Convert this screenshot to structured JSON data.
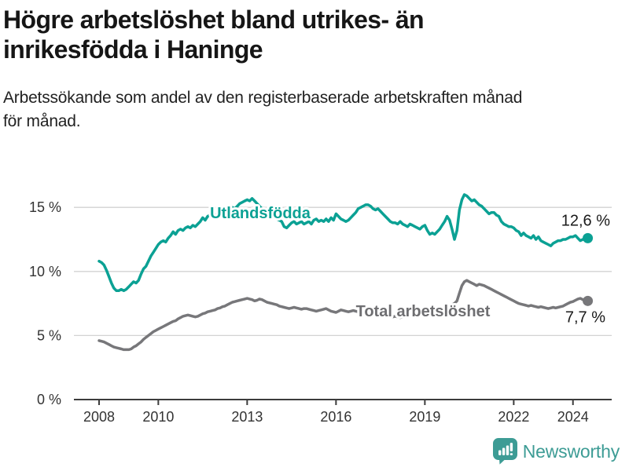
{
  "header": {
    "title_lines": [
      "Högre arbetslöshet bland utrikes- än",
      "inrikesfödda i Haninge"
    ],
    "subtitle_lines": [
      "Arbetssökande som andel av den registerbaserade arbetskraften månad",
      "för månad."
    ]
  },
  "footer": {
    "brand": "Newsworthy",
    "brand_color": "#3d9c95",
    "logo_icon": "newsworthy-speech-bubble-bar-chart-icon"
  },
  "chart_data": {
    "type": "line",
    "title": "Högre arbetslöshet bland utrikes- än inrikesfödda i Haninge",
    "subtitle": "Arbetssökande som andel av den registerbaserade arbetskraften månad för månad.",
    "x_unit": "month",
    "x_start": "2008-01",
    "x_end": "2024-07",
    "xlabel": "",
    "ylabel": "",
    "ylim": [
      0,
      16.5
    ],
    "grid": "horizontal",
    "grid_color": "#d2d2d2",
    "axis_color": "#3c3c3c",
    "tick_text_color": "#333333",
    "y_ticks": [
      {
        "value": 0,
        "label": "0 %"
      },
      {
        "value": 5,
        "label": "5 %"
      },
      {
        "value": 10,
        "label": "10 %"
      },
      {
        "value": 15,
        "label": "15 %"
      }
    ],
    "x_ticks": [
      {
        "year": 2008,
        "label": "2008"
      },
      {
        "year": 2010,
        "label": "2010"
      },
      {
        "year": 2013,
        "label": "2013"
      },
      {
        "year": 2016,
        "label": "2016"
      },
      {
        "year": 2019,
        "label": "2019"
      },
      {
        "year": 2022,
        "label": "2022"
      },
      {
        "year": 2024,
        "label": "2024"
      }
    ],
    "series": [
      {
        "name": "Utlandsfödda",
        "color": "#0ba194",
        "end_label": "12,6 %",
        "end_value": 12.6,
        "values": [
          10.8,
          10.7,
          10.5,
          10.1,
          9.6,
          9.1,
          8.7,
          8.5,
          8.5,
          8.6,
          8.5,
          8.6,
          8.8,
          9.0,
          9.2,
          9.1,
          9.3,
          9.8,
          10.2,
          10.4,
          10.8,
          11.2,
          11.5,
          11.8,
          12.1,
          12.3,
          12.4,
          12.3,
          12.6,
          12.8,
          13.1,
          12.9,
          13.2,
          13.3,
          13.2,
          13.4,
          13.5,
          13.4,
          13.6,
          13.5,
          13.7,
          13.9,
          14.2,
          14.0,
          14.3,
          14.4,
          14.3,
          14.4,
          14.5,
          14.4,
          14.6,
          14.5,
          14.6,
          14.8,
          15.0,
          14.9,
          15.1,
          15.3,
          15.4,
          15.5,
          15.6,
          15.5,
          15.7,
          15.5,
          15.3,
          15.1,
          14.9,
          14.7,
          14.5,
          14.4,
          14.3,
          14.2,
          14.1,
          14.0,
          13.9,
          13.5,
          13.4,
          13.6,
          13.8,
          13.9,
          13.7,
          13.8,
          13.9,
          13.7,
          13.8,
          13.9,
          13.7,
          14.0,
          14.1,
          13.9,
          14.0,
          13.9,
          14.1,
          13.9,
          14.2,
          14.0,
          14.5,
          14.3,
          14.1,
          14.0,
          13.9,
          14.0,
          14.2,
          14.4,
          14.6,
          14.9,
          15.0,
          15.1,
          15.2,
          15.2,
          15.1,
          14.9,
          14.8,
          14.9,
          14.7,
          14.5,
          14.3,
          14.1,
          13.9,
          13.8,
          13.8,
          13.7,
          13.9,
          13.7,
          13.6,
          13.5,
          13.7,
          13.6,
          13.5,
          13.4,
          13.3,
          13.5,
          13.6,
          13.2,
          12.9,
          13.0,
          12.9,
          13.1,
          13.3,
          13.6,
          13.9,
          14.3,
          14.0,
          13.3,
          12.5,
          13.2,
          14.8,
          15.6,
          16.0,
          15.9,
          15.7,
          15.5,
          15.6,
          15.4,
          15.2,
          15.1,
          14.9,
          14.7,
          14.5,
          14.6,
          14.6,
          14.4,
          14.3,
          13.9,
          13.7,
          13.6,
          13.5,
          13.5,
          13.4,
          13.2,
          13.1,
          12.8,
          13.0,
          12.8,
          12.7,
          12.6,
          12.8,
          12.5,
          12.7,
          12.4,
          12.3,
          12.2,
          12.1,
          12.0,
          12.2,
          12.3,
          12.4,
          12.4,
          12.5,
          12.5,
          12.6,
          12.7,
          12.7,
          12.8,
          12.6,
          12.4,
          12.5,
          12.55,
          12.6
        ]
      },
      {
        "name": "Total arbetslöshet",
        "color": "#77777a",
        "end_label": "7,7 %",
        "end_value": 7.7,
        "values": [
          4.6,
          4.55,
          4.5,
          4.4,
          4.3,
          4.2,
          4.1,
          4.05,
          4.0,
          3.95,
          3.9,
          3.9,
          3.9,
          3.95,
          4.1,
          4.2,
          4.35,
          4.5,
          4.7,
          4.85,
          5.0,
          5.15,
          5.3,
          5.4,
          5.5,
          5.6,
          5.7,
          5.8,
          5.9,
          6.0,
          6.1,
          6.15,
          6.3,
          6.4,
          6.5,
          6.55,
          6.6,
          6.55,
          6.5,
          6.45,
          6.5,
          6.6,
          6.7,
          6.75,
          6.85,
          6.9,
          6.95,
          7.0,
          7.1,
          7.15,
          7.25,
          7.3,
          7.4,
          7.5,
          7.6,
          7.65,
          7.7,
          7.75,
          7.8,
          7.85,
          7.9,
          7.85,
          7.8,
          7.7,
          7.75,
          7.85,
          7.8,
          7.7,
          7.6,
          7.55,
          7.5,
          7.45,
          7.4,
          7.3,
          7.25,
          7.2,
          7.15,
          7.1,
          7.15,
          7.2,
          7.15,
          7.1,
          7.05,
          7.1,
          7.1,
          7.05,
          7.0,
          6.95,
          6.9,
          6.95,
          7.0,
          7.05,
          7.1,
          7.0,
          6.9,
          6.85,
          6.8,
          6.9,
          7.0,
          6.95,
          6.9,
          6.85,
          6.9,
          6.95,
          6.9,
          6.85,
          6.8,
          6.75,
          6.7,
          6.7,
          6.65,
          6.6,
          6.6,
          6.55,
          6.5,
          6.5,
          6.45,
          6.5,
          6.5,
          6.45,
          6.5,
          6.45,
          6.4,
          6.45,
          6.5,
          6.5,
          6.55,
          6.6,
          6.6,
          6.65,
          6.7,
          6.7,
          6.75,
          6.8,
          6.85,
          6.9,
          6.95,
          7.0,
          7.05,
          7.1,
          7.15,
          7.2,
          7.3,
          7.4,
          7.5,
          7.7,
          8.3,
          8.9,
          9.2,
          9.3,
          9.2,
          9.1,
          9.0,
          8.9,
          9.0,
          8.95,
          8.9,
          8.8,
          8.7,
          8.6,
          8.5,
          8.4,
          8.3,
          8.2,
          8.1,
          8.0,
          7.9,
          7.8,
          7.7,
          7.6,
          7.5,
          7.45,
          7.4,
          7.35,
          7.3,
          7.35,
          7.3,
          7.25,
          7.2,
          7.25,
          7.2,
          7.15,
          7.1,
          7.15,
          7.2,
          7.15,
          7.2,
          7.25,
          7.3,
          7.4,
          7.5,
          7.6,
          7.65,
          7.75,
          7.85,
          7.9,
          7.8,
          7.65,
          7.7
        ]
      }
    ],
    "legend_position": "inline-labels"
  }
}
